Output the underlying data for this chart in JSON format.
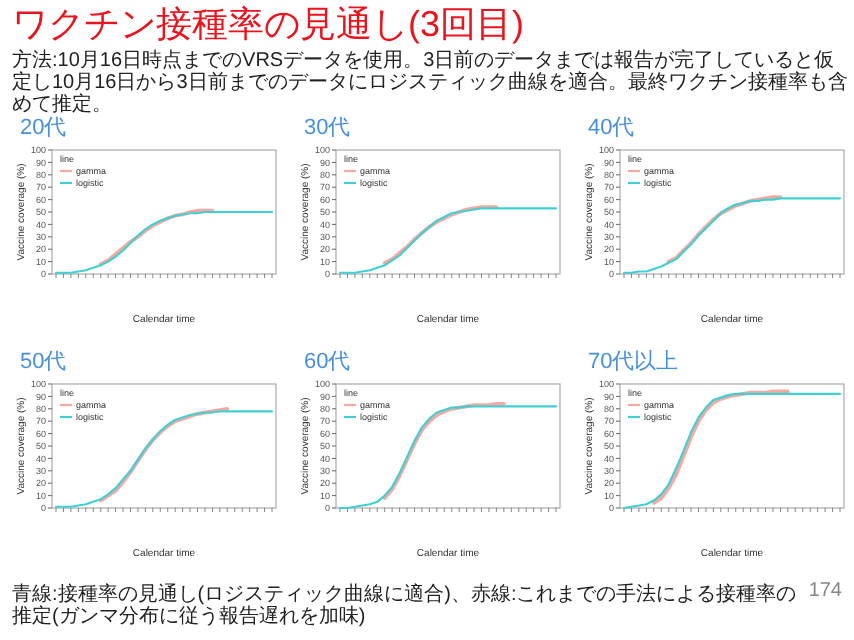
{
  "chart_data": [
    {
      "type": "other",
      "title": "ワクチン接種率の見通し(3回目)",
      "subtitle": "方法:10月16日時点までのVRSデータを使用。3日前のデータまでは報告が完了していると仮定し10月16日から3日前までのデータにロジスティック曲線を適合。最終ワクチン接種率も含めて推定。",
      "annotations": [
        "青線:接種率の見通し(ロジスティック曲線に適合)、赤線:これまでの手法による接種率の推定(ガンマ分布に従う報告遅れを加味)",
        "174"
      ]
    },
    {
      "type": "line",
      "title": "20代",
      "xlabel": "Calendar time",
      "ylabel": "Vaccine coverage (%)",
      "legend_title": "line",
      "legend": "top left",
      "ylim": [
        0,
        100
      ],
      "yticks": [
        0,
        10,
        20,
        30,
        40,
        50,
        60,
        70,
        80,
        90,
        100
      ],
      "categories": [
        null,
        null,
        null,
        null,
        null,
        null,
        null,
        null,
        null,
        null,
        null,
        null,
        null,
        null,
        null,
        null,
        null,
        null,
        null,
        null,
        null,
        null,
        null,
        null,
        null,
        null,
        null,
        null,
        null,
        null
      ],
      "series": [
        {
          "name": "gamma",
          "color": "#f8a8a0",
          "values": [
            null,
            null,
            null,
            null,
            null,
            null,
            8,
            11,
            16,
            21,
            26,
            30,
            35,
            39,
            42,
            45,
            47,
            48,
            50,
            51,
            51,
            51,
            null,
            null,
            null,
            null,
            null,
            null,
            null,
            null
          ]
        },
        {
          "name": "logistic",
          "color": "#40d0d4",
          "values": [
            1,
            1,
            1,
            2,
            3,
            5,
            7,
            10,
            14,
            19,
            25,
            31,
            36,
            40,
            43,
            45,
            47,
            48,
            49,
            49,
            50,
            50,
            50,
            50,
            50,
            50,
            50,
            50,
            50,
            50
          ]
        }
      ]
    },
    {
      "type": "line",
      "title": "30代",
      "xlabel": "Calendar time",
      "ylabel": "Vaccine coverage (%)",
      "legend_title": "line",
      "legend": "top left",
      "ylim": [
        0,
        100
      ],
      "yticks": [
        0,
        10,
        20,
        30,
        40,
        50,
        60,
        70,
        80,
        90,
        100
      ],
      "categories": [
        null,
        null,
        null,
        null,
        null,
        null,
        null,
        null,
        null,
        null,
        null,
        null,
        null,
        null,
        null,
        null,
        null,
        null,
        null,
        null,
        null,
        null,
        null,
        null,
        null,
        null,
        null,
        null,
        null,
        null
      ],
      "series": [
        {
          "name": "gamma",
          "color": "#f8a8a0",
          "values": [
            null,
            null,
            null,
            null,
            null,
            null,
            9,
            12,
            17,
            22,
            28,
            33,
            38,
            42,
            45,
            48,
            50,
            52,
            53,
            54,
            54,
            54,
            null,
            null,
            null,
            null,
            null,
            null,
            null,
            null
          ]
        },
        {
          "name": "logistic",
          "color": "#40d0d4",
          "values": [
            1,
            1,
            1,
            2,
            3,
            5,
            7,
            11,
            15,
            21,
            27,
            33,
            38,
            43,
            46,
            49,
            50,
            51,
            52,
            53,
            53,
            53,
            53,
            53,
            53,
            53,
            53,
            53,
            53,
            53
          ]
        }
      ]
    },
    {
      "type": "line",
      "title": "40代",
      "xlabel": "Calendar time",
      "ylabel": "Vaccine coverage (%)",
      "legend_title": "line",
      "legend": "top left",
      "ylim": [
        0,
        100
      ],
      "yticks": [
        0,
        10,
        20,
        30,
        40,
        50,
        60,
        70,
        80,
        90,
        100
      ],
      "categories": [
        null,
        null,
        null,
        null,
        null,
        null,
        null,
        null,
        null,
        null,
        null,
        null,
        null,
        null,
        null,
        null,
        null,
        null,
        null,
        null,
        null,
        null,
        null,
        null,
        null,
        null,
        null,
        null,
        null,
        null
      ],
      "series": [
        {
          "name": "gamma",
          "color": "#f8a8a0",
          "values": [
            null,
            null,
            null,
            null,
            null,
            null,
            10,
            13,
            19,
            25,
            32,
            38,
            44,
            49,
            52,
            55,
            57,
            59,
            60,
            61,
            62,
            62,
            null,
            null,
            null,
            null,
            null,
            null,
            null,
            null
          ]
        },
        {
          "name": "logistic",
          "color": "#40d0d4",
          "values": [
            1,
            1,
            2,
            2,
            4,
            6,
            9,
            12,
            18,
            24,
            31,
            37,
            43,
            49,
            53,
            56,
            57,
            59,
            59,
            60,
            60,
            61,
            61,
            61,
            61,
            61,
            61,
            61,
            61,
            61
          ]
        }
      ]
    },
    {
      "type": "line",
      "title": "50代",
      "xlabel": "Calendar time",
      "ylabel": "Vaccine coverage (%)",
      "legend_title": "line",
      "legend": "top left",
      "ylim": [
        0,
        100
      ],
      "yticks": [
        0,
        10,
        20,
        30,
        40,
        50,
        60,
        70,
        80,
        90,
        100
      ],
      "categories": [
        null,
        null,
        null,
        null,
        null,
        null,
        null,
        null,
        null,
        null,
        null,
        null,
        null,
        null,
        null,
        null,
        null,
        null,
        null,
        null,
        null,
        null,
        null,
        null,
        null,
        null,
        null,
        null,
        null,
        null
      ],
      "series": [
        {
          "name": "gamma",
          "color": "#f8a8a0",
          "values": [
            null,
            null,
            null,
            null,
            null,
            null,
            6,
            10,
            14,
            21,
            29,
            38,
            47,
            55,
            61,
            66,
            70,
            72,
            74,
            76,
            77,
            78,
            79,
            80,
            null,
            null,
            null,
            null,
            null,
            null
          ]
        },
        {
          "name": "logistic",
          "color": "#40d0d4",
          "values": [
            1,
            1,
            1,
            2,
            3,
            5,
            7,
            11,
            16,
            23,
            30,
            39,
            48,
            55,
            62,
            67,
            71,
            73,
            75,
            76,
            77,
            77,
            78,
            78,
            78,
            78,
            78,
            78,
            78,
            78
          ]
        }
      ]
    },
    {
      "type": "line",
      "title": "60代",
      "xlabel": "Calendar time",
      "ylabel": "Vaccine coverage (%)",
      "legend_title": "line",
      "legend": "top left",
      "ylim": [
        0,
        100
      ],
      "yticks": [
        0,
        10,
        20,
        30,
        40,
        50,
        60,
        70,
        80,
        90,
        100
      ],
      "categories": [
        null,
        null,
        null,
        null,
        null,
        null,
        null,
        null,
        null,
        null,
        null,
        null,
        null,
        null,
        null,
        null,
        null,
        null,
        null,
        null,
        null,
        null,
        null,
        null,
        null,
        null,
        null,
        null,
        null,
        null
      ],
      "series": [
        {
          "name": "gamma",
          "color": "#f8a8a0",
          "values": [
            null,
            null,
            null,
            null,
            null,
            null,
            8,
            15,
            26,
            39,
            52,
            63,
            70,
            75,
            78,
            80,
            81,
            82,
            83,
            83,
            83,
            84,
            84,
            null,
            null,
            null,
            null,
            null,
            null,
            null
          ]
        },
        {
          "name": "logistic",
          "color": "#40d0d4",
          "values": [
            0,
            0,
            1,
            2,
            3,
            5,
            10,
            17,
            28,
            41,
            54,
            65,
            72,
            77,
            79,
            81,
            81,
            82,
            82,
            82,
            82,
            82,
            82,
            82,
            82,
            82,
            82,
            82,
            82,
            82
          ]
        }
      ]
    },
    {
      "type": "line",
      "title": "70代以上",
      "xlabel": "Calendar time",
      "ylabel": "Vaccine coverage (%)",
      "legend_title": "line",
      "legend": "top left",
      "ylim": [
        0,
        100
      ],
      "yticks": [
        0,
        10,
        20,
        30,
        40,
        50,
        60,
        70,
        80,
        90,
        100
      ],
      "categories": [
        null,
        null,
        null,
        null,
        null,
        null,
        null,
        null,
        null,
        null,
        null,
        null,
        null,
        null,
        null,
        null,
        null,
        null,
        null,
        null,
        null,
        null,
        null,
        null,
        null,
        null,
        null,
        null,
        null,
        null
      ],
      "series": [
        {
          "name": "gamma",
          "color": "#f8a8a0",
          "values": [
            null,
            null,
            null,
            null,
            4,
            8,
            16,
            27,
            42,
            57,
            70,
            79,
            85,
            88,
            90,
            91,
            92,
            93,
            93,
            93,
            94,
            94,
            94,
            null,
            null,
            null,
            null,
            null,
            null,
            null
          ]
        },
        {
          "name": "logistic",
          "color": "#40d0d4",
          "values": [
            0,
            1,
            2,
            3,
            6,
            11,
            19,
            32,
            46,
            61,
            73,
            81,
            87,
            89,
            91,
            92,
            92,
            92,
            92,
            92,
            92,
            92,
            92,
            92,
            92,
            92,
            92,
            92,
            92,
            92
          ]
        }
      ]
    }
  ]
}
